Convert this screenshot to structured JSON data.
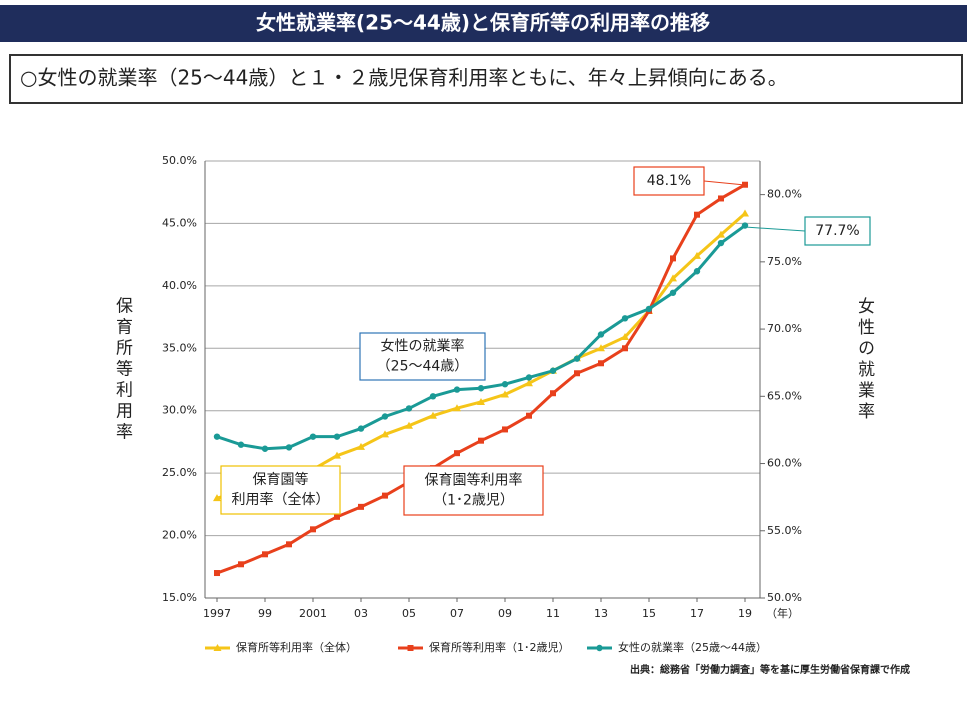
{
  "header": {
    "title": "女性就業率(25～44歳)と保育所等の利用率の推移"
  },
  "summary": "○女性の就業率（25～44歳）と１・２歳児保育利用率ともに、年々上昇傾向にある。",
  "chart_data": {
    "type": "line",
    "y_axis_label": "保育所等利用率",
    "y2_axis_label": "女性の就業率",
    "x_unit_label": "（年）",
    "x": [
      1997,
      1998,
      1999,
      2000,
      2001,
      2002,
      2003,
      2004,
      2005,
      2006,
      2007,
      2008,
      2009,
      2010,
      2011,
      2012,
      2013,
      2014,
      2015,
      2016,
      2017,
      2018,
      2019
    ],
    "xlim": [
      1996.5,
      2019.5
    ],
    "xticks": [
      {
        "value": 1997,
        "label": "1997"
      },
      {
        "value": 1999,
        "label": "99"
      },
      {
        "value": 2001,
        "label": "2001"
      },
      {
        "value": 2003,
        "label": "03"
      },
      {
        "value": 2005,
        "label": "05"
      },
      {
        "value": 2007,
        "label": "07"
      },
      {
        "value": 2009,
        "label": "09"
      },
      {
        "value": 2011,
        "label": "11"
      },
      {
        "value": 2013,
        "label": "13"
      },
      {
        "value": 2015,
        "label": "15"
      },
      {
        "value": 2017,
        "label": "17"
      },
      {
        "value": 2019,
        "label": "19"
      }
    ],
    "ylim": [
      15,
      50
    ],
    "yticks": [
      {
        "value": 15,
        "label": "15.0%"
      },
      {
        "value": 20,
        "label": "20.0%"
      },
      {
        "value": 25,
        "label": "25.0%"
      },
      {
        "value": 30,
        "label": "30.0%"
      },
      {
        "value": 35,
        "label": "35.0%"
      },
      {
        "value": 40,
        "label": "40.0%"
      },
      {
        "value": 45,
        "label": "45.0%"
      },
      {
        "value": 50,
        "label": "50.0%"
      }
    ],
    "y2lim": [
      50,
      82.5
    ],
    "y2ticks": [
      {
        "value": 50,
        "label": "50.0%"
      },
      {
        "value": 55,
        "label": "55.0%"
      },
      {
        "value": 60,
        "label": "60.0%"
      },
      {
        "value": 65,
        "label": "65.0%"
      },
      {
        "value": 70,
        "label": "70.0%"
      },
      {
        "value": 75,
        "label": "75.0%"
      },
      {
        "value": 80,
        "label": "80.0%"
      }
    ],
    "grid": true,
    "series": [
      {
        "name": "保育所等利用率（全体）",
        "color": "#f5c518",
        "marker": "triangle",
        "axis": "y",
        "values": [
          23.0,
          23.5,
          24.0,
          24.6,
          25.3,
          26.4,
          27.1,
          28.1,
          28.8,
          29.6,
          30.2,
          30.7,
          31.3,
          32.2,
          33.2,
          34.2,
          35.0,
          35.9,
          38.0,
          40.6,
          42.4,
          44.1,
          45.8
        ]
      },
      {
        "name": "保育所等利用率（1･2歳児）",
        "color": "#e8401c",
        "marker": "square",
        "axis": "y",
        "values": [
          17.0,
          17.7,
          18.5,
          19.3,
          20.5,
          21.5,
          22.3,
          23.2,
          24.3,
          25.4,
          26.6,
          27.6,
          28.5,
          29.6,
          31.4,
          33.0,
          33.8,
          35.0,
          38.0,
          42.2,
          45.7,
          47.0,
          48.1
        ]
      },
      {
        "name": "女性の就業率（25歳～44歳）",
        "color": "#1a9a96",
        "marker": "circle",
        "axis": "y2",
        "values": [
          62.0,
          61.4,
          61.1,
          61.2,
          62.0,
          62.0,
          62.6,
          63.5,
          64.1,
          65.0,
          65.5,
          65.6,
          65.9,
          66.4,
          66.9,
          67.8,
          69.6,
          70.8,
          71.5,
          72.7,
          74.3,
          76.4,
          77.7
        ]
      }
    ],
    "annotations": [
      {
        "lines": [
          "女性の就業率",
          "（25～44歳）"
        ],
        "color": "#2e75b6"
      },
      {
        "lines": [
          "保育園等",
          "利用率（全体）"
        ],
        "color": "#f0c000"
      },
      {
        "lines": [
          "保育園等利用率",
          "（1･2歳児）"
        ],
        "color": "#e8401c"
      },
      {
        "lines": [
          "48.1%"
        ],
        "color": "#e8401c"
      },
      {
        "lines": [
          "77.7%"
        ],
        "color": "#1a9a96"
      }
    ],
    "source": "出典：総務省「労働力調査」等を基に厚生労働省保育課で作成"
  }
}
